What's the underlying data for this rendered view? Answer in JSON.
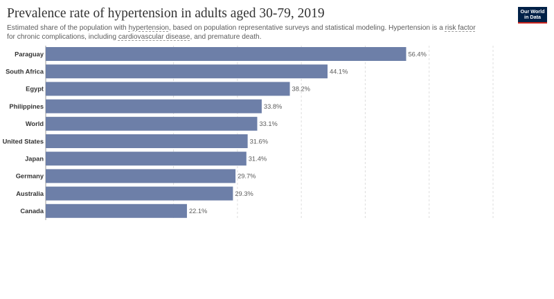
{
  "header": {
    "title": "Prevalence rate of hypertension in adults aged 30-79, 2019",
    "subtitle_parts": [
      {
        "text": "Estimated share of the population with ",
        "link": false
      },
      {
        "text": "hypertension",
        "link": true
      },
      {
        "text": ", based on population representative surveys and statistical modeling. Hypertension is a ",
        "link": false
      },
      {
        "text": "risk factor",
        "link": true
      },
      {
        "text": " for chronic complications, including ",
        "link": false
      },
      {
        "text": "cardiovascular disease",
        "link": true
      },
      {
        "text": ", and premature death.",
        "link": false
      }
    ]
  },
  "logo": {
    "line1": "Our World",
    "line2": "in Data"
  },
  "colors": {
    "bar": "#6d7fa8",
    "grid": "#dddddd",
    "axis": "#999999"
  },
  "chart_data": {
    "type": "bar",
    "orientation": "horizontal",
    "categories": [
      "Paraguay",
      "South Africa",
      "Egypt",
      "Philippines",
      "World",
      "United States",
      "Japan",
      "Germany",
      "Australia",
      "Canada"
    ],
    "values": [
      56.4,
      44.1,
      38.2,
      33.8,
      33.1,
      31.6,
      31.4,
      29.7,
      29.3,
      22.1
    ],
    "value_labels": [
      "56.4%",
      "44.1%",
      "38.2%",
      "33.8%",
      "33.1%",
      "31.6%",
      "31.4%",
      "29.7%",
      "29.3%",
      "22.1%"
    ],
    "xlim": [
      0,
      70
    ],
    "grid_values": [
      20,
      30,
      40,
      50,
      60,
      70
    ],
    "grid": true,
    "title": "Prevalence rate of hypertension in adults aged 30-79, 2019"
  }
}
